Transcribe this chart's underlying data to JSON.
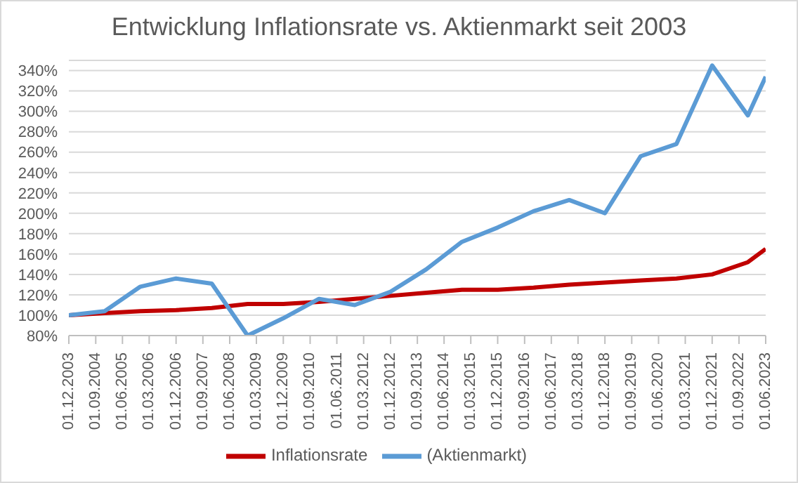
{
  "chart_data": {
    "type": "line",
    "title": "Entwicklung Inflationsrate vs. Aktienmarkt seit 2003",
    "x": [
      "2003-12-01",
      "2004-12-01",
      "2005-12-01",
      "2006-12-01",
      "2007-12-01",
      "2008-12-01",
      "2009-12-01",
      "2010-12-01",
      "2011-12-01",
      "2012-12-01",
      "2013-12-01",
      "2014-12-01",
      "2015-12-01",
      "2016-12-01",
      "2017-12-01",
      "2018-12-01",
      "2019-12-01",
      "2020-12-01",
      "2021-12-01",
      "2022-12-01",
      "2023-06-01"
    ],
    "series": [
      {
        "name": "Inflationsrate",
        "color": "#c00000",
        "values": [
          100,
          102,
          104,
          105,
          107,
          111,
          111,
          113,
          116,
          119,
          122,
          125,
          125,
          127,
          130,
          132,
          134,
          136,
          140,
          152,
          165
        ]
      },
      {
        "name": "(Aktienmarkt)",
        "color": "#5b9bd5",
        "values": [
          100,
          104,
          128,
          136,
          131,
          80,
          97,
          116,
          110,
          123,
          145,
          172,
          186,
          202,
          213,
          200,
          256,
          268,
          345,
          296,
          334
        ]
      }
    ],
    "xlim": [
      "2003-12-01",
      "2023-06-01"
    ],
    "xticks": [
      {
        "value": "2003-12-01",
        "label": "01.12.2003"
      },
      {
        "value": "2004-09-01",
        "label": "01.09.2004"
      },
      {
        "value": "2005-06-01",
        "label": "01.06.2005"
      },
      {
        "value": "2006-03-01",
        "label": "01.03.2006"
      },
      {
        "value": "2006-12-01",
        "label": "01.12.2006"
      },
      {
        "value": "2007-09-01",
        "label": "01.09.2007"
      },
      {
        "value": "2008-06-01",
        "label": "01.06.2008"
      },
      {
        "value": "2009-03-01",
        "label": "01.03.2009"
      },
      {
        "value": "2009-12-01",
        "label": "01.12.2009"
      },
      {
        "value": "2010-09-01",
        "label": "01.09.2010"
      },
      {
        "value": "2011-06-01",
        "label": "01.06.2011"
      },
      {
        "value": "2012-03-01",
        "label": "01.03.2012"
      },
      {
        "value": "2012-12-01",
        "label": "01.12.2012"
      },
      {
        "value": "2013-09-01",
        "label": "01.09.2013"
      },
      {
        "value": "2014-06-01",
        "label": "01.06.2014"
      },
      {
        "value": "2015-03-01",
        "label": "01.03.2015"
      },
      {
        "value": "2015-12-01",
        "label": "01.12.2015"
      },
      {
        "value": "2016-09-01",
        "label": "01.09.2016"
      },
      {
        "value": "2017-06-01",
        "label": "01.06.2017"
      },
      {
        "value": "2018-03-01",
        "label": "01.03.2018"
      },
      {
        "value": "2018-12-01",
        "label": "01.12.2018"
      },
      {
        "value": "2019-09-01",
        "label": "01.09.2019"
      },
      {
        "value": "2020-06-01",
        "label": "01.06.2020"
      },
      {
        "value": "2021-03-01",
        "label": "01.03.2021"
      },
      {
        "value": "2021-12-01",
        "label": "01.12.2021"
      },
      {
        "value": "2022-09-01",
        "label": "01.09.2022"
      },
      {
        "value": "2023-06-01",
        "label": "01.06.2023"
      }
    ],
    "ylim": [
      80,
      350
    ],
    "yticks": [
      {
        "value": 80,
        "label": "80%"
      },
      {
        "value": 100,
        "label": "100%"
      },
      {
        "value": 120,
        "label": "120%"
      },
      {
        "value": 140,
        "label": "140%"
      },
      {
        "value": 160,
        "label": "160%"
      },
      {
        "value": 180,
        "label": "180%"
      },
      {
        "value": 200,
        "label": "200%"
      },
      {
        "value": 220,
        "label": "220%"
      },
      {
        "value": 240,
        "label": "240%"
      },
      {
        "value": 260,
        "label": "260%"
      },
      {
        "value": 280,
        "label": "280%"
      },
      {
        "value": 300,
        "label": "300%"
      },
      {
        "value": 320,
        "label": "320%"
      },
      {
        "value": 340,
        "label": "340%"
      }
    ],
    "grid": "y",
    "legend": "bottom",
    "marker": "none",
    "line_style": "solid"
  }
}
